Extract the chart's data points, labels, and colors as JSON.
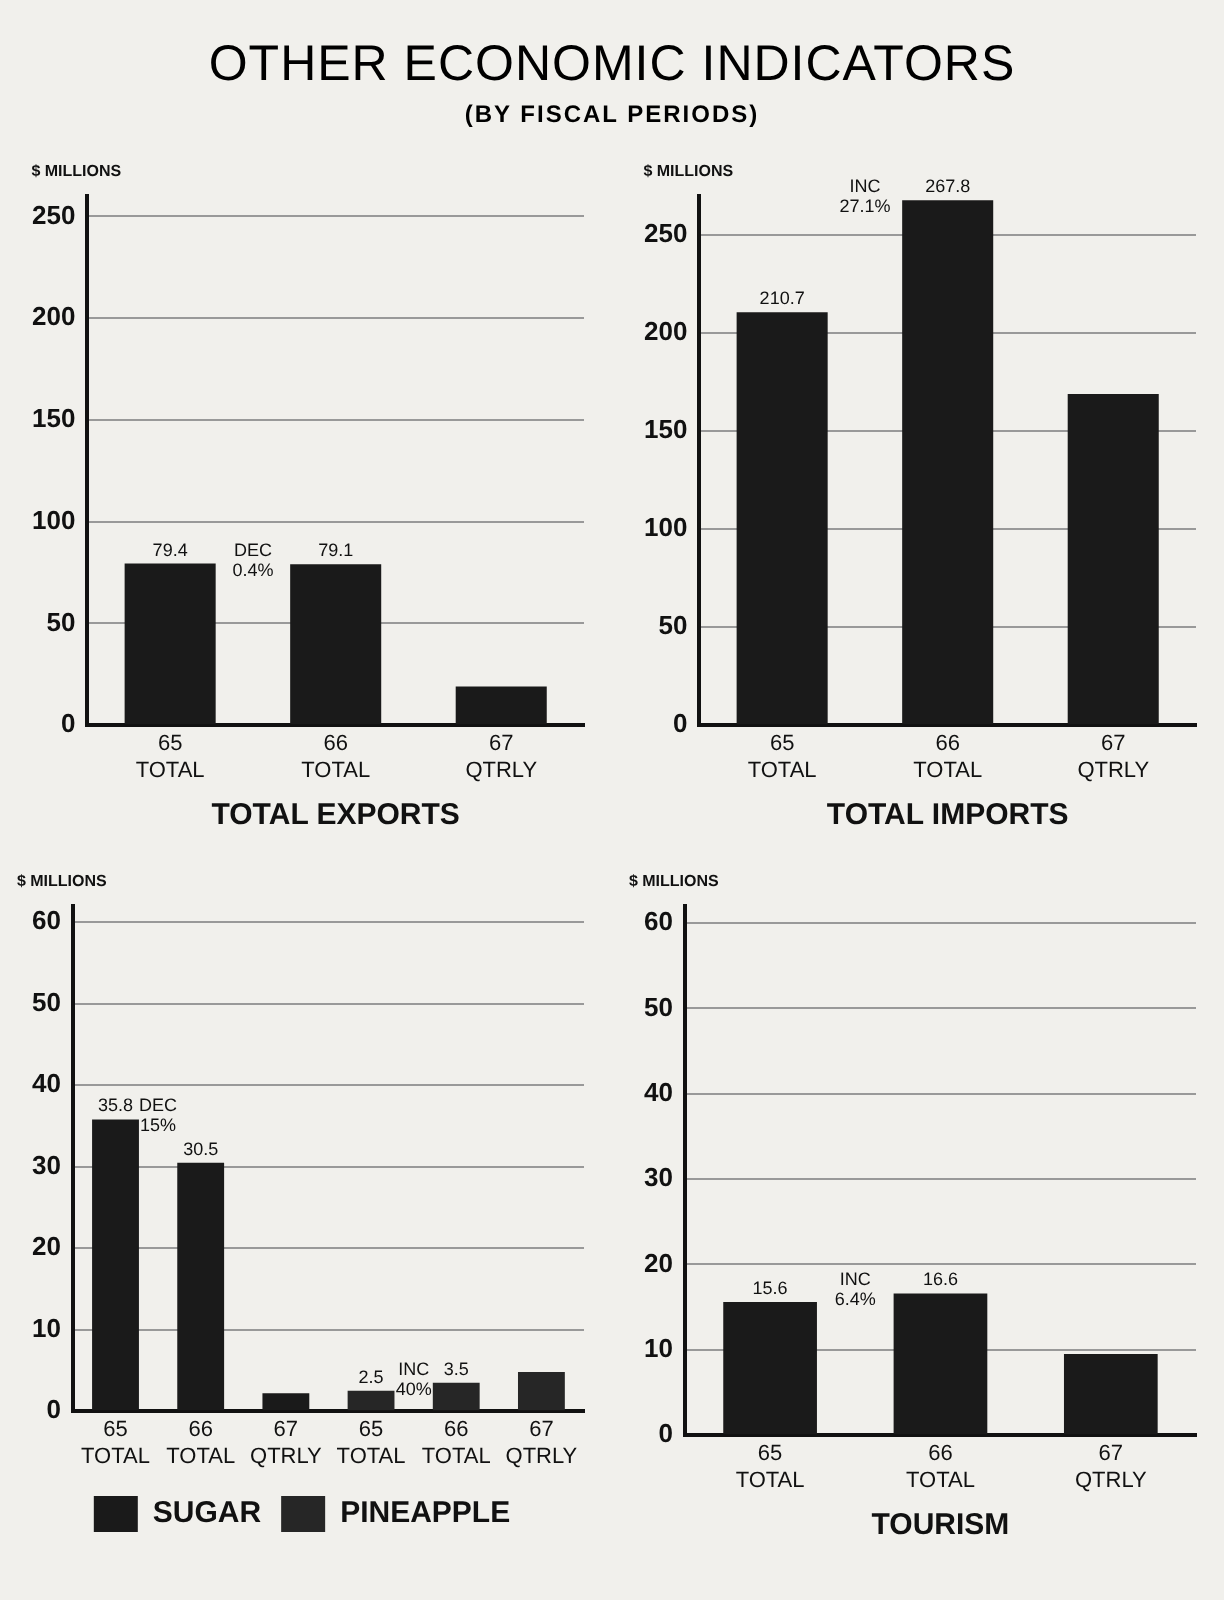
{
  "chart_data": [
    {
      "type": "bar",
      "title": "OTHER ECONOMIC INDICATORS",
      "subtitle": "(BY FISCAL PERIODS)",
      "xlabel": "TOTAL EXPORTS",
      "ylabel": "$ MILLIONS",
      "categories": [
        "65 TOTAL",
        "66 TOTAL",
        "67 QTRLY"
      ],
      "series": [
        {
          "color": "#1a1a1a",
          "values": [
            79.4,
            79.1,
            19
          ],
          "value_labels": [
            "79.4",
            "79.1",
            null
          ]
        }
      ],
      "ylim": [
        0,
        260
      ],
      "yticks": [
        0,
        50,
        100,
        150,
        200,
        250
      ],
      "grid": "y",
      "legend": false,
      "annotations": [
        "DEC 0.4%"
      ]
    },
    {
      "type": "bar",
      "xlabel": "TOTAL IMPORTS",
      "ylabel": "$ MILLIONS",
      "categories": [
        "65 TOTAL",
        "66 TOTAL",
        "67 QTRLY"
      ],
      "series": [
        {
          "color": "#1a1a1a",
          "values": [
            210.7,
            267.8,
            169
          ],
          "value_labels": [
            "210.7",
            "267.8",
            null
          ]
        }
      ],
      "ylim": [
        0,
        270
      ],
      "yticks": [
        0,
        50,
        100,
        150,
        200,
        250
      ],
      "grid": "y",
      "legend": false,
      "annotations": [
        "INC 27.1%"
      ]
    },
    {
      "type": "bar",
      "ylabel": "$ MILLIONS",
      "categories": [
        "65 TOTAL",
        "66 TOTAL",
        "67 QTRLY",
        "65 TOTAL",
        "66 TOTAL",
        "67 QTRLY"
      ],
      "series": [
        {
          "name": "SUGAR",
          "color": "#1a1a1a",
          "values": [
            35.8,
            30.5,
            2.2,
            null,
            null,
            null
          ],
          "value_labels": [
            "35.8",
            "30.5",
            null,
            null,
            null,
            null
          ]
        },
        {
          "name": "PINEAPPLE",
          "color": "#262626",
          "values": [
            null,
            null,
            null,
            2.5,
            3.5,
            4.8
          ],
          "value_labels": [
            null,
            null,
            null,
            "2.5",
            "3.5",
            null
          ]
        }
      ],
      "ylim": [
        0,
        62
      ],
      "yticks": [
        0,
        10,
        20,
        30,
        40,
        50,
        60
      ],
      "grid": "y",
      "legend": "bottom",
      "annotations": [
        "DEC 15%",
        "INC 40%"
      ]
    },
    {
      "type": "bar",
      "xlabel": "TOURISM",
      "ylabel": "$ MILLIONS",
      "categories": [
        "65 TOTAL",
        "66 TOTAL",
        "67 QTRLY"
      ],
      "series": [
        {
          "color": "#1a1a1a",
          "values": [
            15.6,
            16.6,
            9.5
          ],
          "value_labels": [
            "15.6",
            "16.6",
            null
          ]
        }
      ],
      "ylim": [
        0,
        62
      ],
      "yticks": [
        0,
        10,
        20,
        30,
        40,
        50,
        60
      ],
      "grid": "y",
      "legend": false,
      "annotations": [
        "INC 6.4%"
      ]
    }
  ]
}
